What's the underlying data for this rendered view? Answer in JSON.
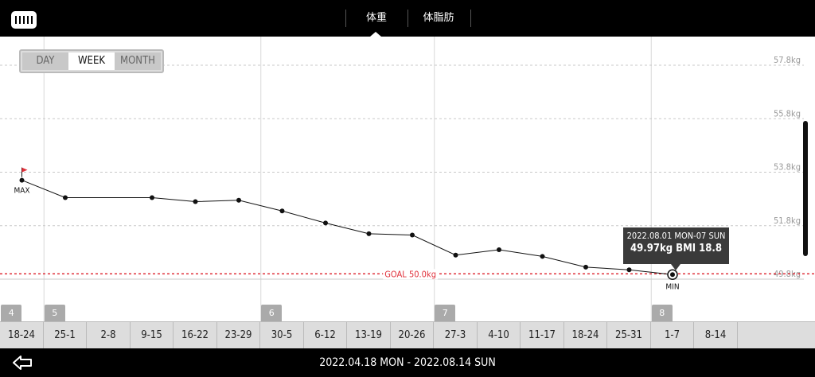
{
  "header": {
    "tabs": [
      {
        "label": "体重",
        "active": true
      },
      {
        "label": "体脂肪",
        "active": false
      }
    ]
  },
  "period_selector": {
    "options": [
      "DAY",
      "WEEK",
      "MONTH"
    ],
    "selected": "WEEK"
  },
  "chart_data": {
    "type": "line",
    "title": "",
    "ylabel": "",
    "y_unit": "kg",
    "ylim": [
      49.0,
      58.2
    ],
    "y_ticks": [
      "57.8kg",
      "55.8kg",
      "53.8kg",
      "51.8kg",
      "49.8kg"
    ],
    "y_tick_values": [
      57.8,
      55.8,
      53.8,
      51.8,
      49.8
    ],
    "goal": {
      "label": "GOAL 50.0kg",
      "value": 50.0,
      "color": "#e0303a"
    },
    "categories": [
      "18-24",
      "25-1",
      "2-8",
      "9-15",
      "16-22",
      "23-29",
      "30-5",
      "6-12",
      "13-19",
      "20-26",
      "27-3",
      "4-10",
      "11-17",
      "18-24",
      "25-31",
      "1-7",
      "8-14"
    ],
    "month_labels": [
      {
        "label": "4",
        "at_index": 0
      },
      {
        "label": "5",
        "at_index": 1
      },
      {
        "label": "6",
        "at_index": 6
      },
      {
        "label": "7",
        "at_index": 10
      },
      {
        "label": "8",
        "at_index": 15
      }
    ],
    "series": [
      {
        "values": [
          53.5,
          52.85,
          null,
          52.85,
          52.7,
          52.75,
          52.35,
          51.9,
          51.5,
          51.45,
          50.7,
          50.9,
          50.65,
          50.25,
          50.15,
          49.97,
          null
        ]
      }
    ],
    "max_marker": {
      "label": "MAX",
      "index": 0,
      "flag_color": "#e0303a"
    },
    "min_marker": {
      "label": "MIN",
      "index": 15
    },
    "grid": true
  },
  "tooltip": {
    "line1": "2022.08.01 MON-07 SUN",
    "line2": "49.97kg  BMI 18.8"
  },
  "footer": {
    "range": "2022.04.18 MON - 2022.08.14 SUN"
  }
}
